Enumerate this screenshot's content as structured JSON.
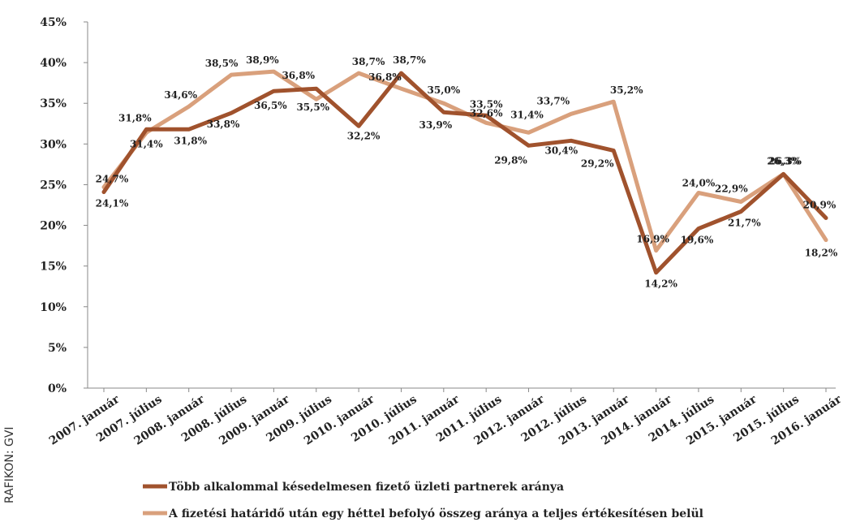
{
  "credit": "RAFIKON: GVI",
  "chart_data": {
    "type": "line",
    "title": "",
    "xlabel": "",
    "ylabel": "",
    "ylim": [
      0,
      45
    ],
    "ytick_labels": [
      "0%",
      "5%",
      "10%",
      "15%",
      "20%",
      "25%",
      "30%",
      "35%",
      "40%",
      "45%"
    ],
    "categories": [
      "2007. január",
      "2007. július",
      "2008. január",
      "2008. július",
      "2009. január",
      "2009. július",
      "2010. január",
      "2010. július",
      "2011. január",
      "2011. július",
      "2012. január",
      "2012. július",
      "2013. január",
      "2014. január",
      "2014. július",
      "2015. január",
      "2015. július",
      "2016. január"
    ],
    "grid": false,
    "legend_position": "bottom",
    "series": [
      {
        "name": "Több alkalommal késedelmesen fizető üzleti partnerek aránya",
        "color": "#a0522d",
        "values": [
          24.1,
          31.8,
          31.8,
          33.8,
          36.5,
          36.8,
          32.2,
          38.7,
          33.9,
          33.5,
          29.8,
          30.4,
          29.2,
          14.2,
          19.6,
          21.7,
          26.3,
          20.9
        ],
        "labels": [
          "24,1%",
          "31,8%",
          "31,8%",
          "33,8%",
          "36,5%",
          "36,8%",
          "32,2%",
          "38,7%",
          "33,9%",
          "33,5%",
          "29,8%",
          "30,4%",
          "29,2%",
          "14,2%",
          "19,6%",
          "21,7%",
          "26,3%",
          "20,9%"
        ]
      },
      {
        "name": "A fizetési határidő után egy héttel befolyó összeg aránya a teljes értékesítésen belül",
        "color": "#d9a07c",
        "values": [
          24.7,
          31.4,
          34.6,
          38.5,
          38.9,
          35.5,
          38.7,
          36.8,
          35.0,
          32.6,
          31.4,
          33.7,
          35.2,
          16.9,
          24.0,
          22.9,
          26.3,
          18.2
        ],
        "labels": [
          "24,7%",
          "31,4%",
          "34,6%",
          "38,5%",
          "38,9%",
          "35,5%",
          "38,7%",
          "36,8%",
          "35,0%",
          "32,6%",
          "31,4%",
          "33,7%",
          "35,2%",
          "16,9%",
          "24,0%",
          "22,9%",
          "26,3%",
          "18,2%"
        ]
      }
    ]
  }
}
